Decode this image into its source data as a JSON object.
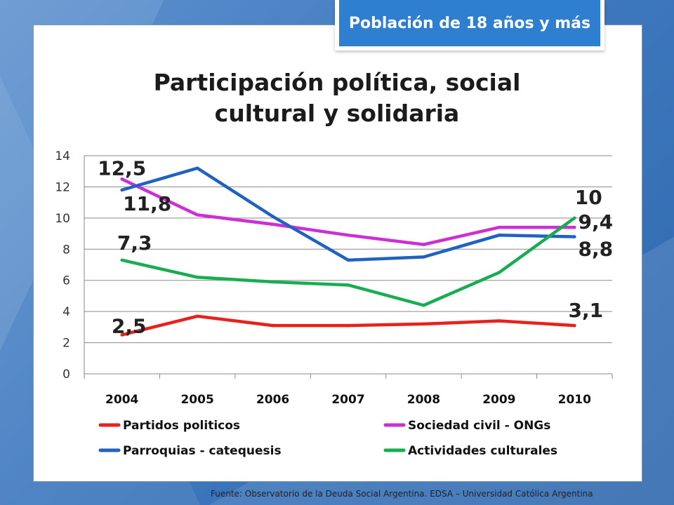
{
  "badge": {
    "label": "Población de 18 años y más"
  },
  "title_line1": "Participación política, social",
  "title_line2": "cultural y solidaria",
  "footer": "Fuente:  Observatorio de  la Deuda Social Argentina. EDSA  – Universidad Católica Argentina",
  "chart_data": {
    "type": "line",
    "title": "Participación política, social cultural y solidaria",
    "categories": [
      "2004",
      "2005",
      "2006",
      "2007",
      "2008",
      "2009",
      "2010"
    ],
    "ylim": [
      0,
      14
    ],
    "yticks": [
      0,
      2,
      4,
      6,
      8,
      10,
      12,
      14
    ],
    "grid": true,
    "legend_position": "bottom",
    "series": [
      {
        "name": "Partidos politicos",
        "color": "#e8211d",
        "values": [
          2.5,
          3.7,
          3.1,
          3.1,
          3.2,
          3.4,
          3.1
        ]
      },
      {
        "name": "Sociedad civil - ONGs",
        "color": "#cc2fd3",
        "values": [
          12.5,
          10.2,
          9.6,
          8.9,
          8.3,
          9.4,
          9.4
        ]
      },
      {
        "name": "Parroquias - catequesis",
        "color": "#1f62c1",
        "values": [
          11.8,
          13.2,
          10.1,
          7.3,
          7.5,
          8.9,
          8.8
        ]
      },
      {
        "name": "Actividades culturales",
        "color": "#19ad52",
        "values": [
          7.3,
          6.2,
          5.9,
          5.7,
          4.4,
          6.5,
          10.0
        ]
      }
    ],
    "annotations": [
      {
        "text": "12,5",
        "x": "2004",
        "y": 12.5
      },
      {
        "text": "11,8",
        "x": "2004",
        "y": 11.8
      },
      {
        "text": "7,3",
        "x": "2004",
        "y": 7.3
      },
      {
        "text": "2,5",
        "x": "2004",
        "y": 2.5
      },
      {
        "text": "10",
        "x": "2010",
        "y": 10.0
      },
      {
        "text": "9,4",
        "x": "2010",
        "y": 9.4
      },
      {
        "text": "8,8",
        "x": "2010",
        "y": 8.8
      },
      {
        "text": "3,1",
        "x": "2010",
        "y": 3.1
      }
    ]
  }
}
